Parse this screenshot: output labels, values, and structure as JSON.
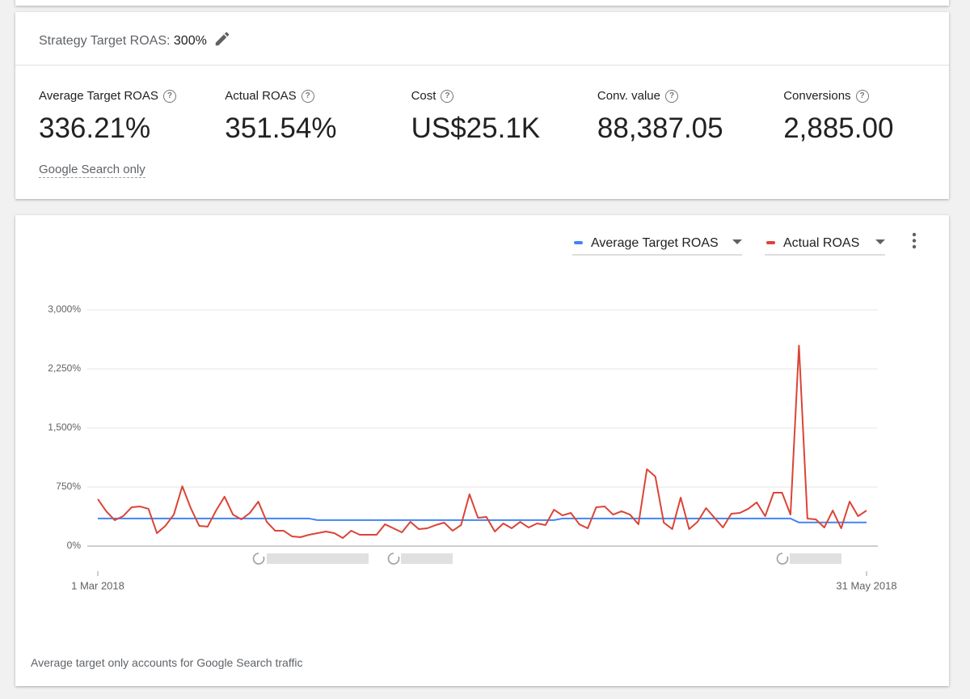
{
  "strategy": {
    "label": "Strategy Target ROAS:",
    "value": "300%"
  },
  "metrics": [
    {
      "label": "Average Target ROAS",
      "value": "336.21%"
    },
    {
      "label": "Actual ROAS",
      "value": "351.54%"
    },
    {
      "label": "Cost",
      "value": "US$25.1K"
    },
    {
      "label": "Conv. value",
      "value": "88,387.05"
    },
    {
      "label": "Conversions",
      "value": "2,885.00"
    }
  ],
  "metrics_note": "Google Search only",
  "chart_data": {
    "type": "line",
    "categories": [
      "1 Mar 2018",
      null,
      null,
      null,
      null,
      null,
      null,
      null,
      null,
      null,
      null,
      null,
      null,
      null,
      null,
      null,
      null,
      null,
      null,
      null,
      null,
      null,
      null,
      null,
      null,
      null,
      null,
      null,
      null,
      null,
      null,
      null,
      null,
      null,
      null,
      null,
      null,
      null,
      null,
      null,
      null,
      null,
      null,
      null,
      null,
      null,
      null,
      null,
      null,
      null,
      null,
      null,
      null,
      null,
      null,
      null,
      null,
      null,
      null,
      null,
      null,
      null,
      null,
      null,
      null,
      null,
      null,
      null,
      null,
      null,
      null,
      null,
      null,
      null,
      null,
      null,
      null,
      null,
      null,
      null,
      null,
      null,
      null,
      null,
      null,
      null,
      null,
      null,
      null,
      null,
      null,
      "31 May 2018"
    ],
    "series": [
      {
        "name": "Average Target ROAS",
        "color": "#4285f4",
        "values": [
          350,
          350,
          350,
          350,
          350,
          350,
          350,
          350,
          350,
          350,
          350,
          350,
          350,
          350,
          350,
          350,
          350,
          350,
          350,
          350,
          350,
          350,
          350,
          350,
          350,
          350,
          330,
          330,
          330,
          330,
          330,
          330,
          330,
          330,
          330,
          330,
          330,
          330,
          330,
          330,
          330,
          330,
          330,
          330,
          330,
          330,
          330,
          330,
          330,
          330,
          330,
          330,
          330,
          330,
          330,
          350,
          350,
          350,
          350,
          350,
          350,
          350,
          350,
          350,
          350,
          350,
          350,
          350,
          350,
          350,
          350,
          350,
          350,
          350,
          350,
          350,
          350,
          350,
          350,
          350,
          350,
          350,
          350,
          300,
          300,
          300,
          300,
          300,
          300,
          300,
          300,
          300
        ]
      },
      {
        "name": "Actual ROAS",
        "color": "#db4437",
        "values": [
          596,
          442,
          329,
          380,
          493,
          503,
          473,
          164,
          257,
          400,
          760,
          483,
          257,
          247,
          452,
          627,
          400,
          339,
          421,
          565,
          308,
          195,
          195,
          123,
          113,
          144,
          164,
          185,
          164,
          103,
          195,
          144,
          144,
          144,
          277,
          226,
          175,
          308,
          216,
          226,
          267,
          298,
          195,
          267,
          658,
          360,
          370,
          185,
          288,
          226,
          308,
          236,
          288,
          267,
          462,
          390,
          421,
          277,
          226,
          493,
          503,
          400,
          442,
          400,
          277,
          976,
          883,
          298,
          216,
          616,
          216,
          308,
          483,
          360,
          236,
          411,
          421,
          473,
          555,
          380,
          678,
          678,
          400,
          2547,
          349,
          339,
          236,
          452,
          226,
          565,
          380,
          452
        ]
      }
    ],
    "ylim": [
      0,
      3000
    ],
    "yticks": [
      {
        "value": 0,
        "label": "0%"
      },
      {
        "value": 750,
        "label": "750%"
      },
      {
        "value": 1500,
        "label": "1,500%"
      },
      {
        "value": 2250,
        "label": "2,250%"
      },
      {
        "value": 3000,
        "label": "3,000%"
      }
    ],
    "grid": true
  },
  "footnote": "Average target only accounts for Google Search traffic"
}
